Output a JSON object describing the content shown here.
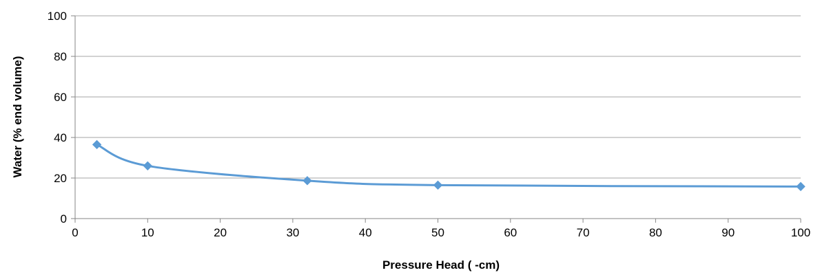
{
  "chart_data": {
    "type": "scatter",
    "title": "",
    "xlabel": "Pressure Head ( -cm)",
    "ylabel": "Water (% end volume)",
    "xlim": [
      0,
      100
    ],
    "ylim": [
      0,
      100
    ],
    "x_ticks": [
      0,
      10,
      20,
      30,
      40,
      50,
      60,
      70,
      80,
      90,
      100
    ],
    "y_ticks": [
      0,
      20,
      40,
      60,
      80,
      100
    ],
    "x_tick_labels": [
      "0",
      "10",
      "20",
      "30",
      "40",
      "50",
      "60",
      "70",
      "80",
      "90",
      "100"
    ],
    "y_tick_labels": [
      "0",
      "20",
      "40",
      "60",
      "80",
      "100"
    ],
    "grid": "horizontal",
    "legend": "none",
    "line_style": "smoothed",
    "marker": "diamond",
    "series": [
      {
        "color": "#5b9bd5",
        "x": [
          3,
          10,
          32,
          50,
          100
        ],
        "y": [
          36.5,
          26,
          18.7,
          16.5,
          15.8
        ]
      }
    ]
  }
}
